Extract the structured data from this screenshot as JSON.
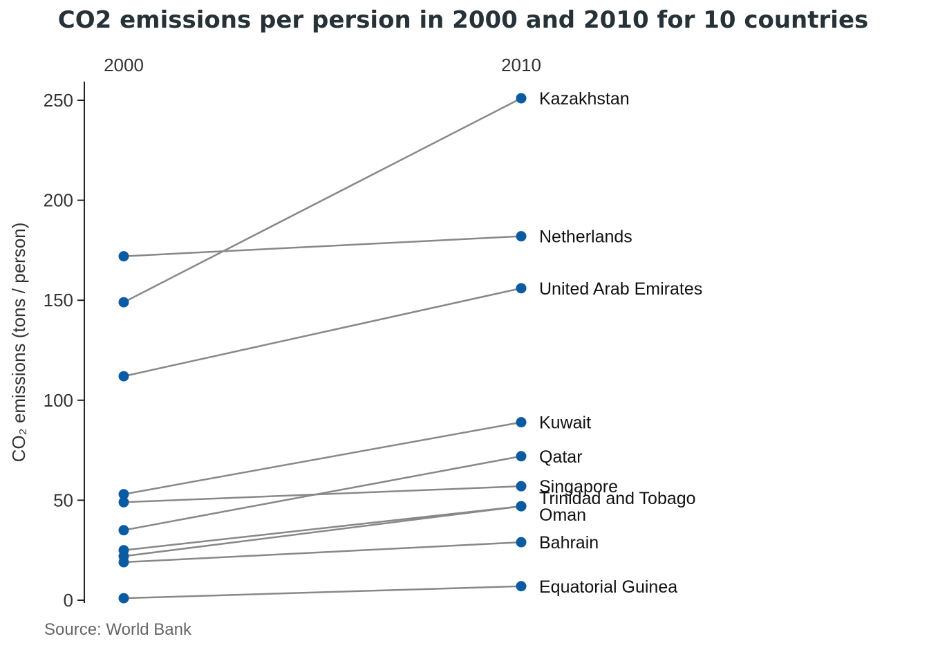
{
  "chart_data": {
    "type": "line",
    "title": "CO2 emissions per persion in 2000 and 2010 for 10 countries",
    "x": [
      "2000",
      "2010"
    ],
    "ylabel": "CO₂ emissions (tons / person)",
    "ylim": [
      0,
      250
    ],
    "yticks": [
      0,
      50,
      100,
      150,
      200,
      250
    ],
    "grid": false,
    "series": [
      {
        "name": "Kazakhstan",
        "values": [
          149,
          251
        ]
      },
      {
        "name": "Netherlands",
        "values": [
          172,
          182
        ]
      },
      {
        "name": "United Arab Emirates",
        "values": [
          112,
          156
        ]
      },
      {
        "name": "Kuwait",
        "values": [
          53,
          89
        ]
      },
      {
        "name": "Qatar",
        "values": [
          35,
          72
        ]
      },
      {
        "name": "Singapore",
        "values": [
          49,
          57
        ]
      },
      {
        "name": "Trinidad and Tobago",
        "values": [
          22,
          47
        ]
      },
      {
        "name": "Oman",
        "values": [
          25,
          47
        ]
      },
      {
        "name": "Bahrain",
        "values": [
          19,
          29
        ]
      },
      {
        "name": "Equatorial Guinea",
        "values": [
          1,
          7
        ]
      }
    ],
    "source": "Source: World Bank",
    "colors": {
      "dot": "#0b5ba3",
      "line": "#888888"
    }
  }
}
